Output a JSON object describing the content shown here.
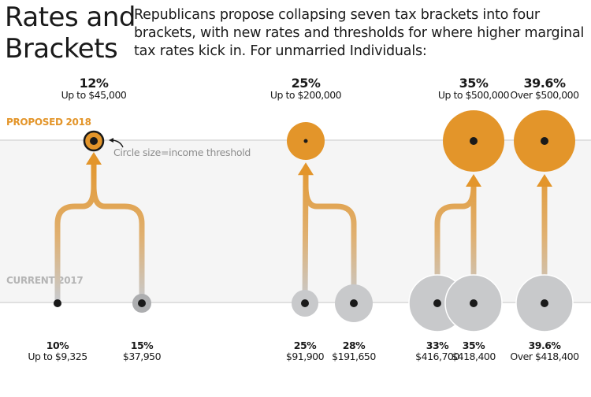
{
  "header": {
    "title_lines": [
      "Rates and",
      "Brackets"
    ],
    "intro_lines": [
      "Republicans propose collapsing seven tax brackets into four",
      "brackets, with new rates and thresholds for where higher marginal",
      "tax rates kick in. For unmarried Individuals:"
    ]
  },
  "rows": {
    "proposed_label": "PROPOSED 2018",
    "current_label": "CURRENT 2017"
  },
  "legend": {
    "note": "Circle size=income threshold"
  },
  "colors": {
    "proposed": "#e3952a",
    "current": "#c8c9cb",
    "dot": "#1a1a1a",
    "band": "#f5f5f5",
    "rule": "#e0e0e0"
  },
  "proposed_brackets": [
    {
      "rate": "12%",
      "threshold": "Up to $45,000",
      "income": 45000
    },
    {
      "rate": "25%",
      "threshold": "Up to $200,000",
      "income": 200000
    },
    {
      "rate": "35%",
      "threshold": "Up to $500,000",
      "income": 500000
    },
    {
      "rate": "39.6%",
      "threshold": "Over $500,000",
      "income": 500000
    }
  ],
  "current_brackets": [
    {
      "rate": "10%",
      "threshold": "Up to $9,325",
      "income": 9325,
      "maps_to": 0
    },
    {
      "rate": "15%",
      "threshold": "$37,950",
      "income": 37950,
      "maps_to": 0
    },
    {
      "rate": "25%",
      "threshold": "$91,900",
      "income": 91900,
      "maps_to": 1
    },
    {
      "rate": "28%",
      "threshold": "$191,650",
      "income": 191650,
      "maps_to": 1
    },
    {
      "rate": "33%",
      "threshold": "$416,700",
      "income": 416700,
      "maps_to": 2
    },
    {
      "rate": "35%",
      "threshold": "$418,400",
      "income": 418400,
      "maps_to": 2
    },
    {
      "rate": "39.6%",
      "threshold": "Over $418,400",
      "income": 418400,
      "maps_to": 3
    }
  ]
}
